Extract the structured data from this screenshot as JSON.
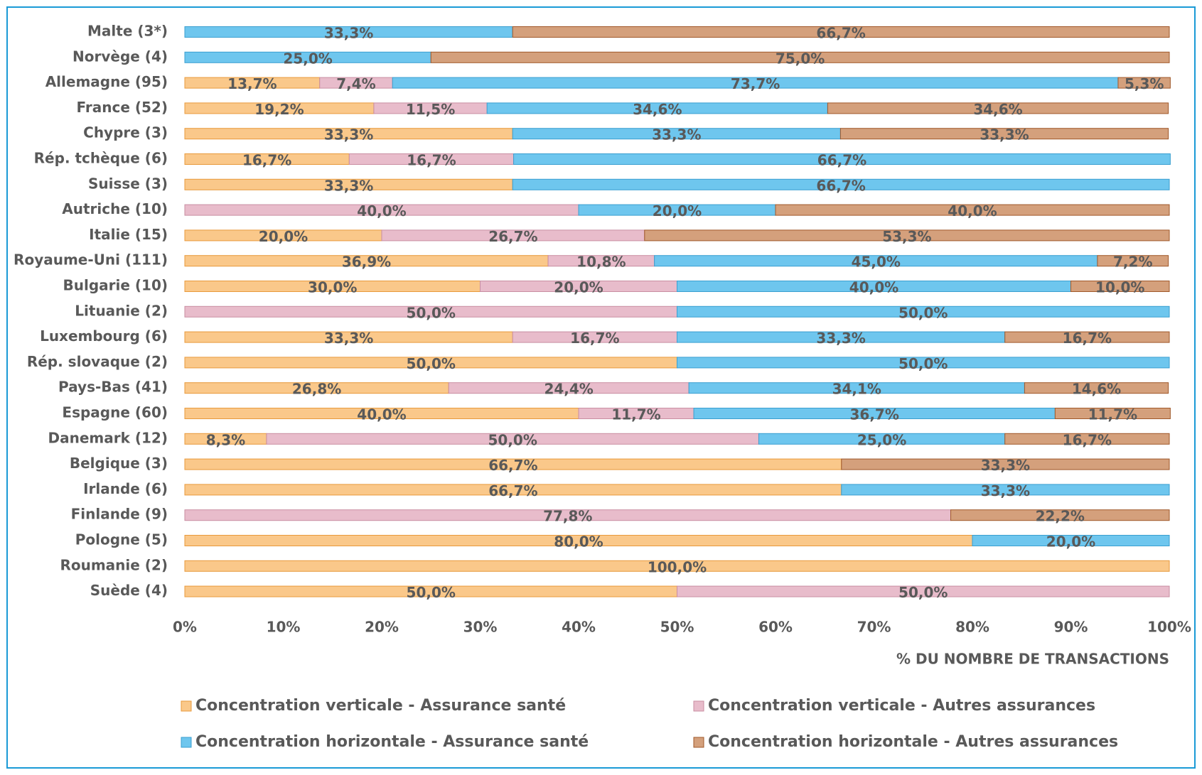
{
  "chart_data": {
    "type": "stacked_barh",
    "categories": [
      "Malte (3*)",
      "Norvège (4)",
      "Allemagne (95)",
      "France (52)",
      "Chypre (3)",
      "Rép. tchèque (6)",
      "Suisse (3)",
      "Autriche (10)",
      "Italie (15)",
      "Royaume-Uni (111)",
      "Bulgarie (10)",
      "Lituanie (2)",
      "Luxembourg (6)",
      "Rép. slovaque (2)",
      "Pays-Bas (41)",
      "Espagne (60)",
      "Danemark (12)",
      "Belgique (3)",
      "Irlande (6)",
      "Finlande (9)",
      "Pologne (5)",
      "Roumanie (2)",
      "Suède (4)"
    ],
    "series": [
      {
        "name": "Concentration verticale - Assurance santé",
        "color": "#fac88a",
        "values": [
          null,
          null,
          13.7,
          19.2,
          33.3,
          16.7,
          33.3,
          null,
          20.0,
          36.9,
          30.0,
          null,
          33.3,
          50.0,
          26.8,
          40.0,
          8.3,
          66.7,
          66.7,
          null,
          80.0,
          100.0,
          50.0
        ],
        "value_labels": [
          null,
          null,
          "13,7%",
          "19,2%",
          "33,3%",
          "16,7%",
          "33,3%",
          null,
          "20,0%",
          "36,9%",
          "30,0%",
          null,
          "33,3%",
          "50,0%",
          "26,8%",
          "40,0%",
          "8,3%",
          "66,7%",
          "66,7%",
          null,
          "80,0%",
          "100,0%",
          "50,0%"
        ]
      },
      {
        "name": "Concentration verticale - Autres assurances",
        "color": "#e8bccb",
        "values": [
          null,
          null,
          7.4,
          11.5,
          null,
          16.7,
          null,
          40.0,
          26.7,
          10.8,
          20.0,
          50.0,
          16.7,
          null,
          24.4,
          11.7,
          50.0,
          null,
          null,
          77.8,
          null,
          null,
          50.0
        ],
        "value_labels": [
          null,
          null,
          "7,4%",
          "11,5%",
          null,
          "16,7%",
          null,
          "40,0%",
          "26,7%",
          "10,8%",
          "20,0%",
          "50,0%",
          "16,7%",
          null,
          "24,4%",
          "11,7%",
          "50,0%",
          null,
          null,
          "77,8%",
          null,
          null,
          "50,0%"
        ]
      },
      {
        "name": "Concentration horizontale - Assurance santé",
        "color": "#6ec6ee",
        "values": [
          33.3,
          25.0,
          73.7,
          34.6,
          33.3,
          66.7,
          66.7,
          20.0,
          null,
          45.0,
          40.0,
          50.0,
          33.3,
          50.0,
          34.1,
          36.7,
          25.0,
          null,
          33.3,
          null,
          20.0,
          null,
          null
        ],
        "value_labels": [
          "33,3%",
          "25,0%",
          "73,7%",
          "34,6%",
          "33,3%",
          "66,7%",
          "66,7%",
          "20,0%",
          null,
          "45,0%",
          "40,0%",
          "50,0%",
          "33,3%",
          "50,0%",
          "34,1%",
          "36,7%",
          "25,0%",
          null,
          "33,3%",
          null,
          "20,0%",
          null,
          null
        ]
      },
      {
        "name": "Concentration horizontale - Autres assurances",
        "color": "#d4a07c",
        "values": [
          66.7,
          75.0,
          5.3,
          34.6,
          33.3,
          null,
          null,
          40.0,
          53.3,
          7.2,
          10.0,
          null,
          16.7,
          null,
          14.6,
          11.7,
          16.7,
          33.3,
          null,
          22.2,
          null,
          null,
          null
        ],
        "value_labels": [
          "66,7%",
          "75,0%",
          "5,3%",
          "34,6%",
          "33,3%",
          null,
          null,
          "40,0%",
          "53,3%",
          "7,2%",
          "10,0%",
          null,
          "16,7%",
          null,
          "14,6%",
          "11,7%",
          "16,7%",
          "33,3%",
          null,
          "22,2%",
          null,
          null,
          null
        ]
      }
    ],
    "xlabel": "% DU NOMBRE DE TRANSACTIONS",
    "xlim": [
      0,
      100
    ],
    "xticks": [
      {
        "value": 0,
        "label": "0%"
      },
      {
        "value": 10,
        "label": "10%"
      },
      {
        "value": 20,
        "label": "20%"
      },
      {
        "value": 30,
        "label": "30%"
      },
      {
        "value": 40,
        "label": "40%"
      },
      {
        "value": 50,
        "label": "50%"
      },
      {
        "value": 60,
        "label": "60%"
      },
      {
        "value": 70,
        "label": "70%"
      },
      {
        "value": 80,
        "label": "80%"
      },
      {
        "value": 90,
        "label": "90%"
      },
      {
        "value": 100,
        "label": "100%"
      }
    ],
    "legend": "bottom"
  }
}
